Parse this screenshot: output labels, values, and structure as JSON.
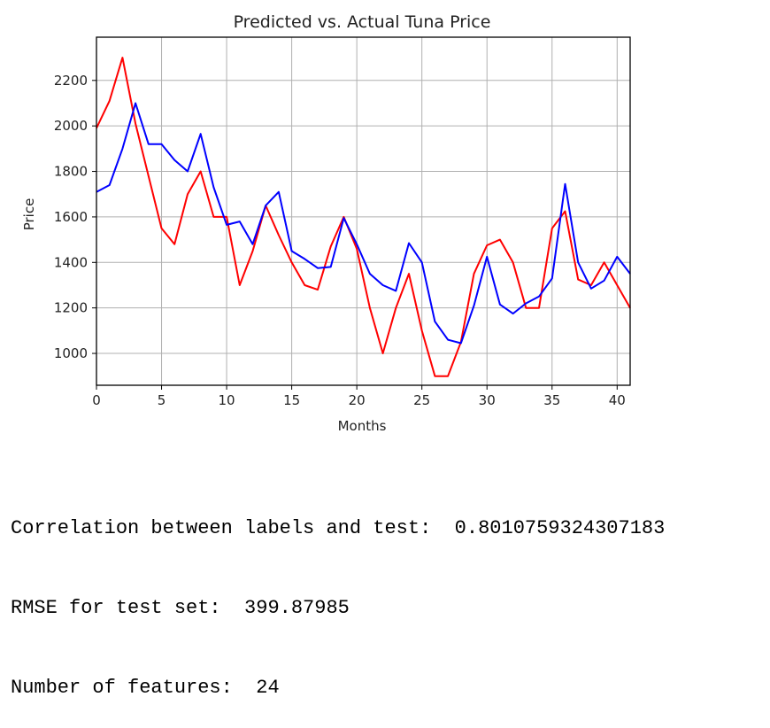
{
  "chart_data": {
    "type": "line",
    "title": "Predicted vs. Actual Tuna Price",
    "xlabel": "Months",
    "ylabel": "Price",
    "xlim": [
      0,
      41
    ],
    "ylim": [
      860,
      2390
    ],
    "x_ticks": [
      0,
      5,
      10,
      15,
      20,
      25,
      30,
      35,
      40
    ],
    "y_ticks": [
      1000,
      1200,
      1400,
      1600,
      1800,
      2000,
      2200
    ],
    "grid": true,
    "x": [
      0,
      1,
      2,
      3,
      4,
      5,
      6,
      7,
      8,
      9,
      10,
      11,
      12,
      13,
      14,
      15,
      16,
      17,
      18,
      19,
      20,
      21,
      22,
      23,
      24,
      25,
      26,
      27,
      28,
      29,
      30,
      31,
      32,
      33,
      34,
      35,
      36,
      37,
      38,
      39,
      40,
      41
    ],
    "series": [
      {
        "color": "#ff0000",
        "values": [
          1990,
          2110,
          2300,
          2010,
          1780,
          1550,
          1480,
          1700,
          1800,
          1600,
          1600,
          1300,
          1450,
          1650,
          1520,
          1400,
          1300,
          1280,
          1470,
          1600,
          1460,
          1200,
          1000,
          1200,
          1350,
          1100,
          900,
          900,
          1050,
          1350,
          1475,
          1500,
          1400,
          1200,
          1200,
          1550,
          1625,
          1325,
          1300,
          1400,
          1300,
          1200
        ]
      },
      {
        "color": "#0000ff",
        "values": [
          1710,
          1740,
          1900,
          2100,
          1920,
          1920,
          1850,
          1800,
          1965,
          1730,
          1565,
          1580,
          1480,
          1650,
          1710,
          1450,
          1415,
          1375,
          1380,
          1595,
          1480,
          1350,
          1300,
          1275,
          1485,
          1400,
          1140,
          1060,
          1045,
          1210,
          1425,
          1215,
          1175,
          1220,
          1250,
          1330,
          1745,
          1400,
          1285,
          1320,
          1425,
          1350
        ]
      }
    ]
  },
  "output": {
    "line1": "Correlation between labels and test:  0.8010759324307183",
    "line2": "RMSE for test set:  399.87985",
    "line3": "Number of features:  24"
  }
}
